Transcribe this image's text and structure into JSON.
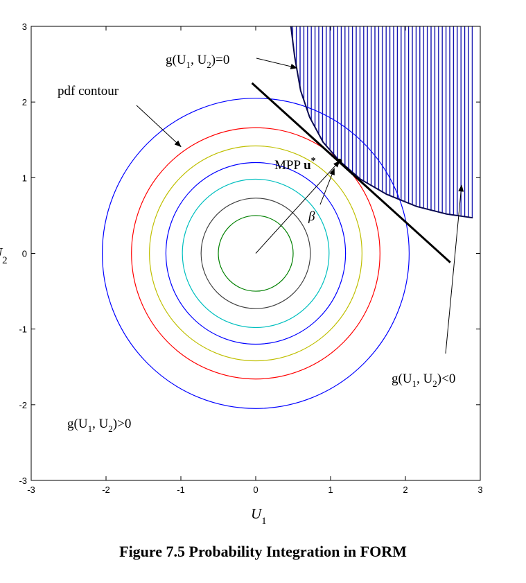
{
  "caption": "Figure 7.5 Probability Integration in FORM",
  "chart_data": {
    "type": "contour",
    "xlabel": "U",
    "xlabel_sub": "1",
    "ylabel": "U",
    "ylabel_sub": "2",
    "xlim": [
      -3,
      3
    ],
    "ylim": [
      -3,
      3
    ],
    "xticks": [
      -3,
      -2,
      -1,
      0,
      1,
      2,
      3
    ],
    "yticks": [
      -3,
      -2,
      -1,
      0,
      1,
      2,
      3
    ],
    "grid": false,
    "contours": [
      {
        "radius": 0.5,
        "color": "#008000"
      },
      {
        "radius": 0.73,
        "color": "#404040"
      },
      {
        "radius": 0.98,
        "color": "#00bfbf"
      },
      {
        "radius": 1.2,
        "color": "#0000ff"
      },
      {
        "radius": 1.42,
        "color": "#bfbf00"
      },
      {
        "radius": 1.66,
        "color": "#ff0000"
      },
      {
        "radius": 2.05,
        "color": "#0000ff"
      }
    ],
    "limit_state_curve": [
      [
        0.47,
        3.0
      ],
      [
        0.52,
        2.6
      ],
      [
        0.6,
        2.15
      ],
      [
        0.72,
        1.8
      ],
      [
        0.9,
        1.47
      ],
      [
        1.12,
        1.22
      ],
      [
        1.4,
        0.98
      ],
      [
        1.75,
        0.78
      ],
      [
        2.15,
        0.62
      ],
      [
        2.55,
        0.52
      ],
      [
        2.9,
        0.47
      ]
    ],
    "failure_region_hatch": "vertical",
    "failure_region_color": "#0000aa",
    "tangent_line": [
      [
        -0.05,
        2.25
      ],
      [
        2.6,
        -0.12
      ]
    ],
    "mpp": [
      1.12,
      1.22
    ],
    "annotations": {
      "limit_state": {
        "text": "g(U",
        "sub1": "1",
        "mid": ", U",
        "sub2": "2",
        "tail": ")=0"
      },
      "pdf_contour": "pdf contour",
      "mpp_label": "MPP ",
      "mpp_vector": "u",
      "mpp_star": "*",
      "beta": "β",
      "failure": {
        "text": "g(U",
        "sub1": "1",
        "mid": ", U",
        "sub2": "2",
        "tail": ")<0"
      },
      "safe": {
        "text": "g(U",
        "sub1": "1",
        "mid": ", U",
        "sub2": "2",
        "tail": ")>0"
      }
    },
    "colors": {
      "axis": "#000000",
      "arrow": "#000000",
      "curve": "#0a0a50"
    }
  }
}
